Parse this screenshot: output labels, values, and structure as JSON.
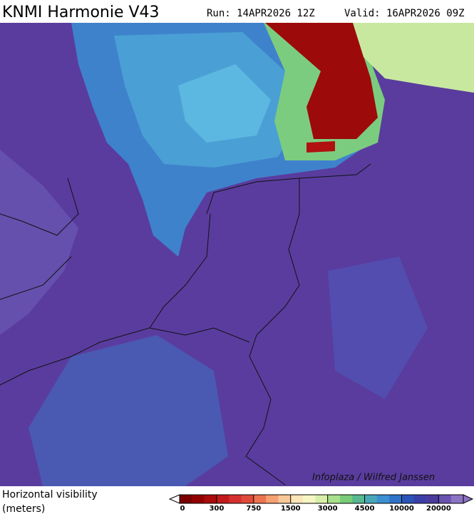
{
  "header": {
    "title": "KNMI Harmonie V43",
    "run": "Run: 14APR2026 12Z",
    "valid": "Valid: 16APR2026 09Z"
  },
  "map": {
    "credit": "Infoplaza / Wilfred Janssen"
  },
  "legend": {
    "label_lines": [
      "Horizontal visibility",
      "(meters)"
    ],
    "colors": [
      "#7a0000",
      "#930000",
      "#ab0a0a",
      "#c21a1a",
      "#d43030",
      "#e04a3a",
      "#ec7350",
      "#f4a070",
      "#f8c898",
      "#fbe6b8",
      "#f6f6c4",
      "#d8f0a8",
      "#a8e08c",
      "#78cc78",
      "#58b890",
      "#48a8b8",
      "#3c8fd0",
      "#2f72c8",
      "#2a55b8",
      "#3a3fa8",
      "#4a3a9c",
      "#6a52b0",
      "#8c74c4"
    ],
    "ticks": [
      0,
      300,
      750,
      1500,
      3000,
      4500,
      10000,
      20000
    ]
  }
}
